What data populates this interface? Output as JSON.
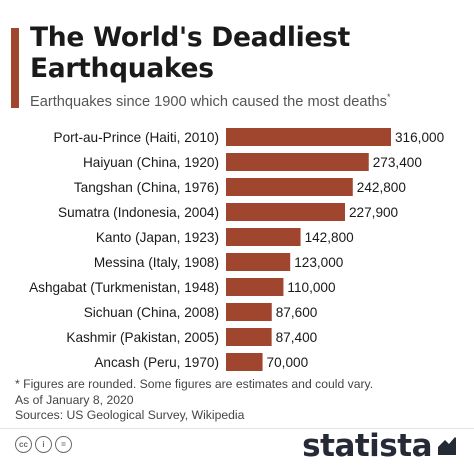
{
  "title": "The World's Deadliest Earthquakes",
  "subtitle": "Earthquakes since 1900 which caused the most deaths",
  "subtitle_mark": "*",
  "chart_data": {
    "type": "bar",
    "orientation": "horizontal",
    "categories": [
      "Port-au-Prince (Haiti, 2010)",
      "Haiyuan (China, 1920)",
      "Tangshan (China, 1976)",
      "Sumatra (Indonesia, 2004)",
      "Kanto (Japan, 1923)",
      "Messina (Italy, 1908)",
      "Ashgabat (Turkmenistan, 1948)",
      "Sichuan (China, 2008)",
      "Kashmir (Pakistan, 2005)",
      "Ancash (Peru, 1970)"
    ],
    "values": [
      316000,
      273400,
      242800,
      227900,
      142800,
      123000,
      110000,
      87600,
      87400,
      70000
    ],
    "value_labels": [
      "316,000",
      "273,400",
      "242,800",
      "227,900",
      "142,800",
      "123,000",
      "110,000",
      "87,600",
      "87,400",
      "70,000"
    ],
    "xlim": [
      0,
      316000
    ],
    "grid": false,
    "bar_color": "#a0452e"
  },
  "footnotes": [
    "* Figures are rounded. Some figures are estimates and could vary.",
    "As of January 8, 2020",
    "Sources: US Geological Survey, Wikipedia"
  ],
  "footer": {
    "license_icons": [
      "cc-icon",
      "attribution-icon",
      "no-derivatives-icon"
    ],
    "license_glyphs": [
      "cc",
      "i",
      "="
    ],
    "brand": "statista"
  }
}
